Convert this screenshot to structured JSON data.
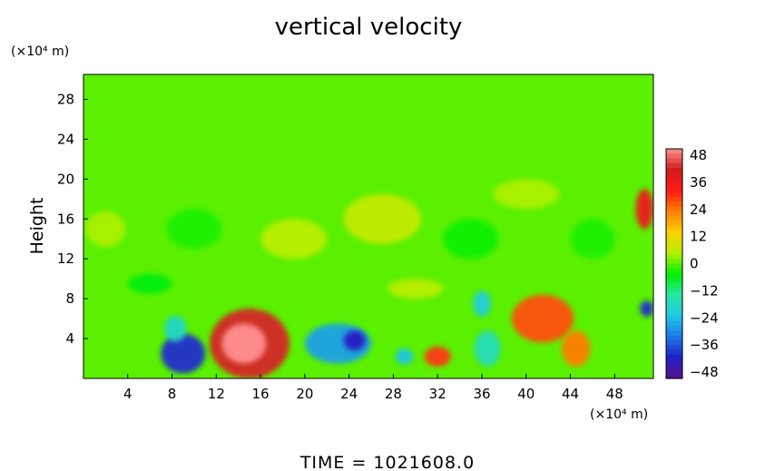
{
  "chart_data": {
    "type": "heatmap",
    "title": "vertical velocity",
    "ylabel": "Height",
    "y_unit": "(×10⁴ m)",
    "x_unit": "(×10⁴ m)",
    "footer": "TIME  =  1021608.0",
    "xlim": [
      0,
      51.5
    ],
    "ylim": [
      0,
      30.5
    ],
    "xticks": [
      4,
      8,
      12,
      16,
      20,
      24,
      28,
      32,
      36,
      40,
      44,
      48
    ],
    "yticks": [
      4,
      8,
      12,
      16,
      20,
      24,
      28
    ],
    "background_value": 0,
    "features": [
      {
        "x": 15.0,
        "y": 3.5,
        "rx": 3.6,
        "ry": 3.5,
        "value": 40
      },
      {
        "x": 14.5,
        "y": 3.5,
        "rx": 2.0,
        "ry": 2.0,
        "value": 48
      },
      {
        "x": 9.0,
        "y": 2.5,
        "rx": 2.0,
        "ry": 2.0,
        "value": -38
      },
      {
        "x": 8.3,
        "y": 5.0,
        "rx": 1.0,
        "ry": 1.3,
        "value": -18
      },
      {
        "x": 23.0,
        "y": 3.5,
        "rx": 3.0,
        "ry": 2.0,
        "value": -26
      },
      {
        "x": 24.5,
        "y": 3.8,
        "rx": 1.0,
        "ry": 1.0,
        "value": -40
      },
      {
        "x": 29.0,
        "y": 2.2,
        "rx": 0.8,
        "ry": 0.8,
        "value": -22
      },
      {
        "x": 32.0,
        "y": 2.2,
        "rx": 1.2,
        "ry": 1.0,
        "value": 28
      },
      {
        "x": 36.0,
        "y": 7.5,
        "rx": 0.8,
        "ry": 1.3,
        "value": -20
      },
      {
        "x": 36.5,
        "y": 3.0,
        "rx": 1.2,
        "ry": 1.8,
        "value": -16
      },
      {
        "x": 41.5,
        "y": 6.0,
        "rx": 2.8,
        "ry": 2.4,
        "value": 26
      },
      {
        "x": 44.5,
        "y": 3.0,
        "rx": 1.3,
        "ry": 1.8,
        "value": 22
      },
      {
        "x": 50.7,
        "y": 17.0,
        "rx": 0.8,
        "ry": 2.0,
        "value": 34
      },
      {
        "x": 50.9,
        "y": 7.0,
        "rx": 0.6,
        "ry": 0.8,
        "value": -38
      },
      {
        "x": 2.0,
        "y": 15.0,
        "rx": 1.8,
        "ry": 1.8,
        "value": 4
      },
      {
        "x": 10.0,
        "y": 15.0,
        "rx": 2.5,
        "ry": 2.0,
        "value": -3
      },
      {
        "x": 19.0,
        "y": 14.0,
        "rx": 3.0,
        "ry": 2.0,
        "value": 5
      },
      {
        "x": 27.0,
        "y": 16.0,
        "rx": 3.5,
        "ry": 2.5,
        "value": 6
      },
      {
        "x": 35.0,
        "y": 14.0,
        "rx": 2.5,
        "ry": 2.0,
        "value": -4
      },
      {
        "x": 40.0,
        "y": 18.5,
        "rx": 3.0,
        "ry": 1.5,
        "value": 4
      },
      {
        "x": 46.0,
        "y": 14.0,
        "rx": 2.0,
        "ry": 2.0,
        "value": -3
      },
      {
        "x": 6.0,
        "y": 9.5,
        "rx": 2.0,
        "ry": 1.0,
        "value": -5
      },
      {
        "x": 30.0,
        "y": 9.0,
        "rx": 2.5,
        "ry": 1.0,
        "value": 5
      }
    ],
    "colorbar": {
      "labels": [
        "48",
        "36",
        "24",
        "12",
        "0",
        "−12",
        "−24",
        "−36",
        "−48"
      ],
      "min": -48,
      "max": 48,
      "stops": [
        "#5a0f8c",
        "#2020c8",
        "#1e78e6",
        "#1ec8e6",
        "#28e6a0",
        "#00f000",
        "#b4f000",
        "#ffd000",
        "#ff8000",
        "#ff1a1a",
        "#d01c1c",
        "#ff9090"
      ]
    }
  }
}
